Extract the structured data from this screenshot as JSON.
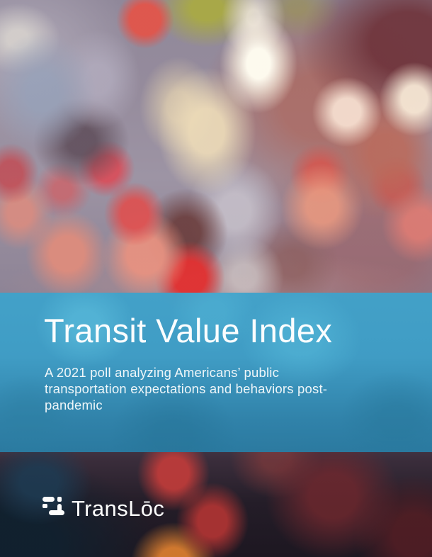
{
  "cover": {
    "title": "Transit Value Index",
    "subtitle": "A 2021 poll analyzing Americans’ public transportation expectations and behaviors post-pandemic",
    "banner_color_top": "#40a2ca",
    "banner_color_bottom": "#2a7ca3",
    "text_color": "#ffffff"
  },
  "logo": {
    "wordmark": "TransLōc",
    "color": "#fdfdfd"
  }
}
